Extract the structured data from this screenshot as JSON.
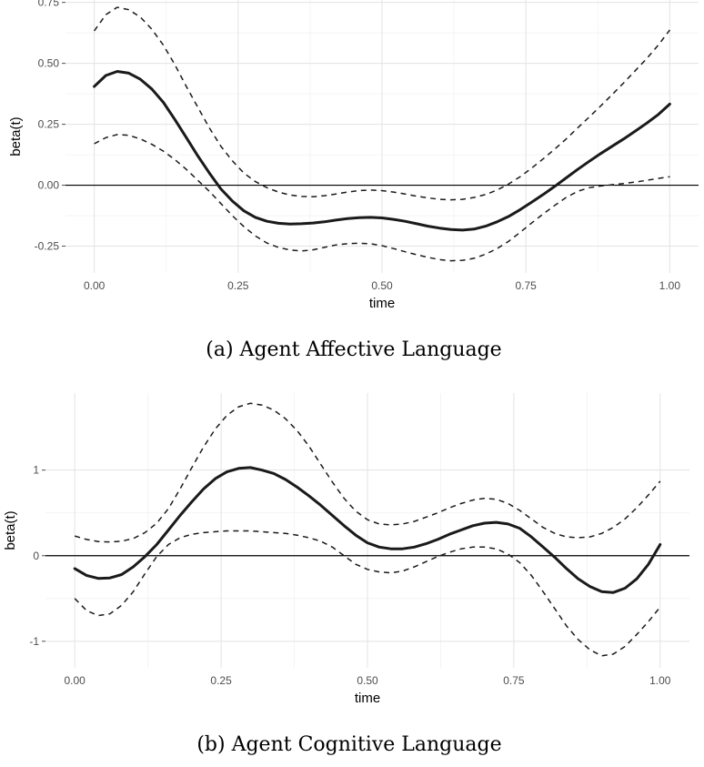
{
  "chart_data": [
    {
      "type": "line",
      "caption": "(a) Agent Affective Language",
      "xlabel": "time",
      "ylabel": "beta(t)",
      "xlim": [
        -0.05,
        1.05
      ],
      "ylim": [
        -0.36,
        0.76
      ],
      "x_ticks": [
        0.0,
        0.25,
        0.5,
        0.75,
        1.0
      ],
      "x_tick_labels": [
        "0.00",
        "0.25",
        "0.50",
        "0.75",
        "1.00"
      ],
      "y_ticks": [
        -0.25,
        0.0,
        0.25,
        0.5,
        0.75
      ],
      "y_tick_labels": [
        "-0.25",
        "0.00",
        "0.25",
        "0.50",
        "0.75"
      ],
      "hline": 0,
      "grid": true,
      "x": [
        0.0,
        0.02,
        0.04,
        0.06,
        0.08,
        0.1,
        0.12,
        0.14,
        0.16,
        0.18,
        0.2,
        0.22,
        0.24,
        0.26,
        0.28,
        0.3,
        0.32,
        0.34,
        0.36,
        0.38,
        0.4,
        0.42,
        0.44,
        0.46,
        0.48,
        0.5,
        0.52,
        0.54,
        0.56,
        0.58,
        0.6,
        0.62,
        0.64,
        0.66,
        0.68,
        0.7,
        0.72,
        0.74,
        0.76,
        0.78,
        0.8,
        0.82,
        0.84,
        0.86,
        0.88,
        0.9,
        0.92,
        0.94,
        0.96,
        0.98,
        1.0
      ],
      "series": [
        {
          "style": "solid",
          "values": [
            0.405,
            0.45,
            0.467,
            0.46,
            0.435,
            0.395,
            0.34,
            0.27,
            0.195,
            0.12,
            0.05,
            -0.015,
            -0.065,
            -0.105,
            -0.132,
            -0.148,
            -0.156,
            -0.159,
            -0.158,
            -0.155,
            -0.15,
            -0.143,
            -0.137,
            -0.133,
            -0.132,
            -0.134,
            -0.14,
            -0.148,
            -0.158,
            -0.168,
            -0.176,
            -0.182,
            -0.184,
            -0.18,
            -0.168,
            -0.15,
            -0.128,
            -0.1,
            -0.07,
            -0.038,
            -0.005,
            0.03,
            0.065,
            0.098,
            0.13,
            0.16,
            0.19,
            0.222,
            0.255,
            0.29,
            0.333
          ]
        },
        {
          "style": "dashed",
          "values": [
            0.633,
            0.7,
            0.73,
            0.72,
            0.69,
            0.64,
            0.575,
            0.495,
            0.405,
            0.32,
            0.235,
            0.16,
            0.1,
            0.05,
            0.015,
            -0.01,
            -0.028,
            -0.04,
            -0.046,
            -0.047,
            -0.043,
            -0.036,
            -0.028,
            -0.022,
            -0.02,
            -0.022,
            -0.028,
            -0.036,
            -0.045,
            -0.052,
            -0.058,
            -0.06,
            -0.058,
            -0.05,
            -0.038,
            -0.02,
            0.005,
            0.035,
            0.07,
            0.108,
            0.148,
            0.19,
            0.235,
            0.28,
            0.325,
            0.372,
            0.42,
            0.47,
            0.52,
            0.575,
            0.637
          ]
        },
        {
          "style": "dashed",
          "values": [
            0.17,
            0.195,
            0.208,
            0.205,
            0.19,
            0.168,
            0.14,
            0.105,
            0.065,
            0.02,
            -0.025,
            -0.075,
            -0.125,
            -0.17,
            -0.208,
            -0.237,
            -0.255,
            -0.266,
            -0.27,
            -0.265,
            -0.255,
            -0.245,
            -0.24,
            -0.238,
            -0.24,
            -0.248,
            -0.26,
            -0.273,
            -0.285,
            -0.296,
            -0.305,
            -0.31,
            -0.308,
            -0.3,
            -0.283,
            -0.26,
            -0.23,
            -0.193,
            -0.155,
            -0.118,
            -0.083,
            -0.05,
            -0.025,
            -0.01,
            -0.003,
            0.002,
            0.007,
            0.013,
            0.02,
            0.028,
            0.035
          ]
        }
      ]
    },
    {
      "type": "line",
      "caption": "(b) Agent Cognitive Language",
      "xlabel": "time",
      "ylabel": "beta(t)",
      "xlim": [
        -0.05,
        1.05
      ],
      "ylim": [
        -1.31,
        1.9
      ],
      "x_ticks": [
        0.0,
        0.25,
        0.5,
        0.75,
        1.0
      ],
      "x_tick_labels": [
        "0.00",
        "0.25",
        "0.50",
        "0.75",
        "1.00"
      ],
      "y_ticks": [
        -1,
        0,
        1
      ],
      "y_tick_labels": [
        "-1",
        "0",
        "1"
      ],
      "hline": 0,
      "grid": true,
      "x": [
        0.0,
        0.02,
        0.04,
        0.06,
        0.08,
        0.1,
        0.12,
        0.14,
        0.16,
        0.18,
        0.2,
        0.22,
        0.24,
        0.26,
        0.28,
        0.3,
        0.32,
        0.34,
        0.36,
        0.38,
        0.4,
        0.42,
        0.44,
        0.46,
        0.48,
        0.5,
        0.52,
        0.54,
        0.56,
        0.58,
        0.6,
        0.62,
        0.64,
        0.66,
        0.68,
        0.7,
        0.72,
        0.74,
        0.76,
        0.78,
        0.8,
        0.82,
        0.84,
        0.86,
        0.88,
        0.9,
        0.92,
        0.94,
        0.96,
        0.98,
        1.0
      ],
      "series": [
        {
          "style": "solid",
          "values": [
            -0.15,
            -0.23,
            -0.265,
            -0.26,
            -0.22,
            -0.13,
            -0.01,
            0.13,
            0.3,
            0.47,
            0.63,
            0.78,
            0.9,
            0.98,
            1.02,
            1.03,
            1.0,
            0.96,
            0.89,
            0.8,
            0.7,
            0.59,
            0.47,
            0.35,
            0.24,
            0.15,
            0.1,
            0.08,
            0.08,
            0.1,
            0.14,
            0.19,
            0.25,
            0.3,
            0.35,
            0.38,
            0.39,
            0.37,
            0.32,
            0.22,
            0.1,
            -0.02,
            -0.15,
            -0.27,
            -0.36,
            -0.42,
            -0.43,
            -0.38,
            -0.27,
            -0.1,
            0.13
          ]
        },
        {
          "style": "dashed",
          "values": [
            0.23,
            0.19,
            0.165,
            0.16,
            0.17,
            0.2,
            0.27,
            0.38,
            0.55,
            0.78,
            1.03,
            1.27,
            1.48,
            1.64,
            1.74,
            1.78,
            1.76,
            1.7,
            1.6,
            1.46,
            1.28,
            1.07,
            0.86,
            0.67,
            0.52,
            0.42,
            0.37,
            0.36,
            0.37,
            0.4,
            0.45,
            0.5,
            0.56,
            0.61,
            0.65,
            0.67,
            0.66,
            0.61,
            0.53,
            0.43,
            0.33,
            0.26,
            0.22,
            0.21,
            0.22,
            0.26,
            0.33,
            0.43,
            0.56,
            0.71,
            0.87
          ]
        },
        {
          "style": "dashed",
          "values": [
            -0.5,
            -0.64,
            -0.7,
            -0.68,
            -0.58,
            -0.42,
            -0.21,
            -0.01,
            0.13,
            0.21,
            0.25,
            0.27,
            0.28,
            0.29,
            0.29,
            0.29,
            0.28,
            0.27,
            0.26,
            0.24,
            0.21,
            0.17,
            0.1,
            0.0,
            -0.1,
            -0.16,
            -0.19,
            -0.2,
            -0.18,
            -0.13,
            -0.07,
            -0.01,
            0.04,
            0.08,
            0.1,
            0.1,
            0.08,
            0.02,
            -0.08,
            -0.23,
            -0.42,
            -0.62,
            -0.82,
            -0.98,
            -1.1,
            -1.17,
            -1.15,
            -1.06,
            -0.92,
            -0.77,
            -0.6
          ]
        }
      ]
    }
  ]
}
